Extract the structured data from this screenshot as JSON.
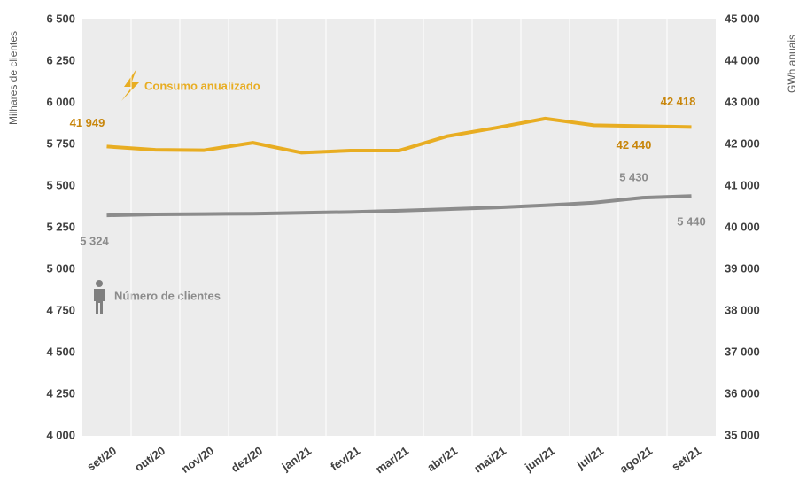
{
  "chart_data": {
    "type": "line",
    "categories": [
      "set/20",
      "out/20",
      "nov/20",
      "dez/20",
      "jan/21",
      "fev/21",
      "mar/21",
      "abr/21",
      "mai/21",
      "jun/21",
      "jul/21",
      "ago/21",
      "set/21"
    ],
    "ylabel": "Milhares de clientes",
    "y2label": "GWh anuais",
    "ylim": [
      4000,
      6500
    ],
    "yticks": [
      {
        "value": 4000,
        "label": "4 000"
      },
      {
        "value": 4250,
        "label": "4 250"
      },
      {
        "value": 4500,
        "label": "4 500"
      },
      {
        "value": 4750,
        "label": "4 750"
      },
      {
        "value": 5000,
        "label": "5 000"
      },
      {
        "value": 5250,
        "label": "5 250"
      },
      {
        "value": 5500,
        "label": "5 500"
      },
      {
        "value": 5750,
        "label": "5 750"
      },
      {
        "value": 6000,
        "label": "6 000"
      },
      {
        "value": 6250,
        "label": "6 250"
      },
      {
        "value": 6500,
        "label": "6 500"
      }
    ],
    "y2lim": [
      35000,
      45000
    ],
    "y2ticks": [
      {
        "value": 35000,
        "label": "35 000"
      },
      {
        "value": 36000,
        "label": "36 000"
      },
      {
        "value": 37000,
        "label": "37 000"
      },
      {
        "value": 38000,
        "label": "38 000"
      },
      {
        "value": 39000,
        "label": "39 000"
      },
      {
        "value": 40000,
        "label": "40 000"
      },
      {
        "value": 41000,
        "label": "41 000"
      },
      {
        "value": 42000,
        "label": "42 000"
      },
      {
        "value": 43000,
        "label": "43 000"
      },
      {
        "value": 44000,
        "label": "44 000"
      },
      {
        "value": 45000,
        "label": "45 000"
      }
    ],
    "series": [
      {
        "name": "Consumo anualizado",
        "color": "#e8ad22",
        "axis": "y2",
        "values": [
          41949,
          41870,
          41860,
          42040,
          41800,
          41850,
          41850,
          42200,
          42400,
          42620,
          42460,
          42440,
          42418
        ],
        "value_labels": [
          "41 949",
          null,
          null,
          null,
          null,
          null,
          null,
          null,
          null,
          null,
          null,
          "42 440",
          "42 418"
        ]
      },
      {
        "name": "Número de clientes",
        "color": "#8c8c8c",
        "values": [
          5324,
          5330,
          5332,
          5334,
          5339,
          5344,
          5352,
          5361,
          5371,
          5384,
          5400,
          5430,
          5440
        ],
        "value_labels": [
          "5 324",
          null,
          null,
          null,
          null,
          null,
          null,
          null,
          null,
          null,
          null,
          "5 430",
          "5 440"
        ]
      }
    ]
  }
}
